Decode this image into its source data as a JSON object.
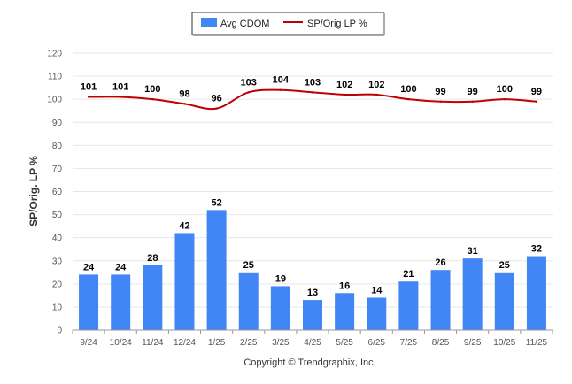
{
  "chart_data": {
    "type": "bar+line",
    "categories": [
      "9/24",
      "10/24",
      "11/24",
      "12/24",
      "1/25",
      "2/25",
      "3/25",
      "4/25",
      "5/25",
      "6/25",
      "7/25",
      "8/25",
      "9/25",
      "10/25",
      "11/25"
    ],
    "series": [
      {
        "name": "Avg CDOM",
        "kind": "bar",
        "color": "#4285f4",
        "values": [
          24,
          24,
          28,
          42,
          52,
          25,
          19,
          13,
          16,
          14,
          21,
          26,
          31,
          25,
          32
        ]
      },
      {
        "name": "SP/Orig LP %",
        "kind": "line",
        "color": "#c00000",
        "values": [
          101,
          101,
          100,
          98,
          96,
          103,
          104,
          103,
          102,
          102,
          100,
          99,
          99,
          100,
          99
        ]
      }
    ],
    "ylabel": "SP/Orig. LP %",
    "ylim": [
      0,
      120
    ],
    "yticks": [
      0,
      10,
      20,
      30,
      40,
      50,
      60,
      70,
      80,
      90,
      100,
      110,
      120
    ],
    "grid": true,
    "legend_position": "top-center"
  },
  "credit": "Copyright © Trendgraphix, Inc."
}
